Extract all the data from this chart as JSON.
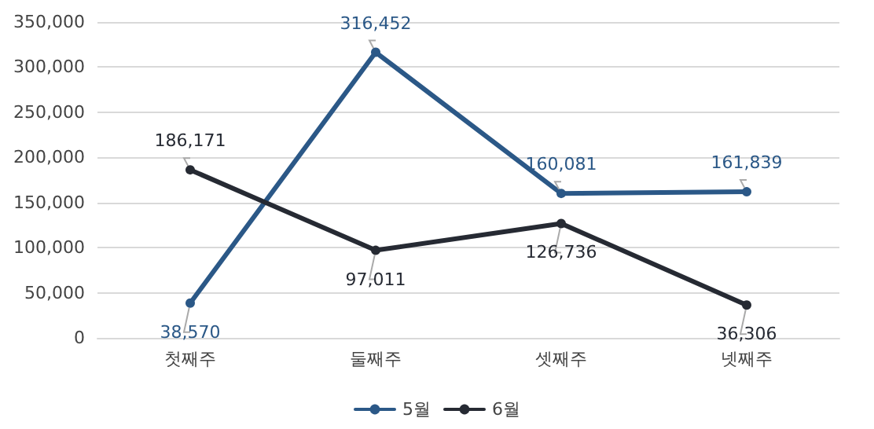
{
  "chart_data": {
    "type": "line",
    "categories": [
      "첫째주",
      "둘째주",
      "셋째주",
      "넷째주"
    ],
    "series": [
      {
        "name": "5월",
        "color": "#2b5887",
        "values": [
          38570,
          316452,
          160081,
          161839
        ],
        "value_labels": [
          "38,570",
          "316,452",
          "160,081",
          "161,839"
        ]
      },
      {
        "name": "6월",
        "color": "#262a33",
        "values": [
          186171,
          97011,
          126736,
          36306
        ],
        "value_labels": [
          "186,171",
          "97,011",
          "126,736",
          "36,306"
        ]
      }
    ],
    "ylim": [
      0,
      350000
    ],
    "yticks": [
      {
        "value": 0,
        "label": "0"
      },
      {
        "value": 50000,
        "label": "50,000"
      },
      {
        "value": 100000,
        "label": "100,000"
      },
      {
        "value": 150000,
        "label": "150,000"
      },
      {
        "value": 200000,
        "label": "200,000"
      },
      {
        "value": 250000,
        "label": "250,000"
      },
      {
        "value": 300000,
        "label": "300,000"
      },
      {
        "value": 350000,
        "label": "350,000"
      }
    ],
    "grid": "y",
    "legend": "bottom",
    "marker": "circle",
    "line_style": "solid"
  }
}
